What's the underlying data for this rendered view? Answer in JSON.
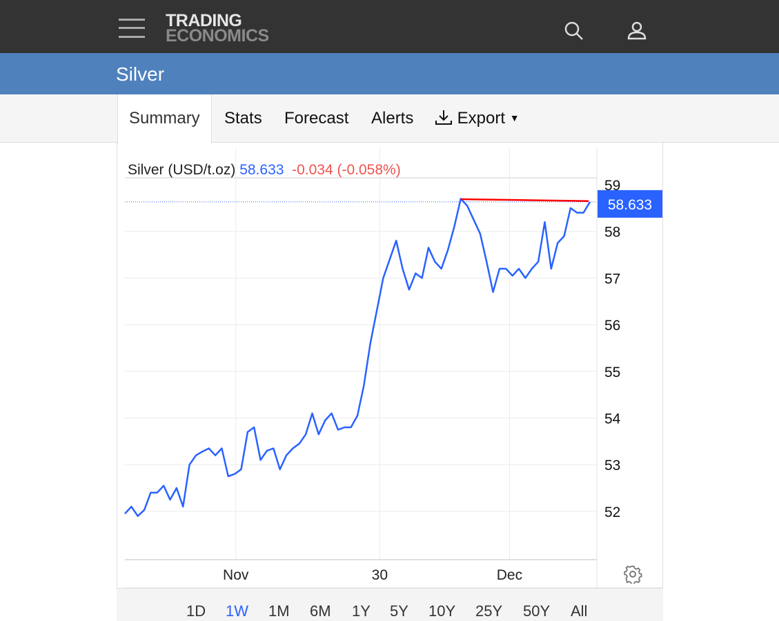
{
  "header": {
    "logo_line1": "TRADING",
    "logo_line2": "ECONOMICS",
    "menu_icon": "hamburger-icon",
    "search_icon": "search-icon",
    "user_icon": "user-icon"
  },
  "page_title": "Silver",
  "tabs": [
    {
      "label": "Summary",
      "active": true
    },
    {
      "label": "Stats"
    },
    {
      "label": "Forecast"
    },
    {
      "label": "Alerts"
    },
    {
      "label": "Export"
    }
  ],
  "legend": {
    "name": "Silver (USD/t.oz)",
    "price": "58.633",
    "change": "-0.034 (-0.058%)"
  },
  "colors": {
    "line": "#2962ff",
    "change": "#ef5350",
    "annotation": "#ff0000",
    "header": "#333333",
    "titlebar": "#4f81bd"
  },
  "ranges": [
    {
      "label": "1D"
    },
    {
      "label": "1W",
      "active": true
    },
    {
      "label": "1M"
    },
    {
      "label": "6M"
    },
    {
      "label": "1Y"
    },
    {
      "label": "5Y"
    },
    {
      "label": "10Y"
    },
    {
      "label": "25Y"
    },
    {
      "label": "50Y"
    },
    {
      "label": "All"
    }
  ],
  "chart_data": {
    "type": "line",
    "title": "Silver (USD/t.oz)",
    "ylim": [
      51.0,
      59.4
    ],
    "yticks": [
      52,
      53,
      54,
      55,
      56,
      57,
      58,
      59
    ],
    "xticks": [
      {
        "label": "Nov",
        "pos": 0.235
      },
      {
        "label": "30",
        "pos": 0.54
      },
      {
        "label": "Dec",
        "pos": 0.815
      }
    ],
    "last_value": 58.633,
    "last_label": "58.633",
    "grid": true,
    "series": [
      {
        "name": "Silver",
        "values": [
          51.95,
          52.1,
          51.9,
          52.03,
          52.4,
          52.4,
          52.55,
          52.25,
          52.5,
          52.1,
          53.0,
          53.2,
          53.28,
          53.35,
          53.2,
          53.35,
          52.75,
          52.8,
          52.9,
          53.7,
          53.8,
          53.1,
          53.3,
          53.35,
          52.9,
          53.2,
          53.35,
          53.45,
          53.65,
          54.1,
          53.65,
          53.95,
          54.1,
          53.75,
          53.8,
          53.8,
          54.05,
          54.7,
          55.6,
          56.3,
          57.0,
          57.4,
          57.8,
          57.2,
          56.75,
          57.1,
          57.0,
          57.65,
          57.35,
          57.2,
          57.6,
          58.1,
          58.7,
          58.55,
          58.25,
          57.95,
          57.35,
          56.7,
          57.2,
          57.2,
          57.05,
          57.2,
          57.0,
          57.2,
          57.35,
          58.2,
          57.2,
          57.75,
          57.9,
          58.5,
          58.4,
          58.4,
          58.63
        ]
      }
    ],
    "annotation": {
      "type": "trendline",
      "from": 58.69,
      "to": 58.65
    }
  }
}
